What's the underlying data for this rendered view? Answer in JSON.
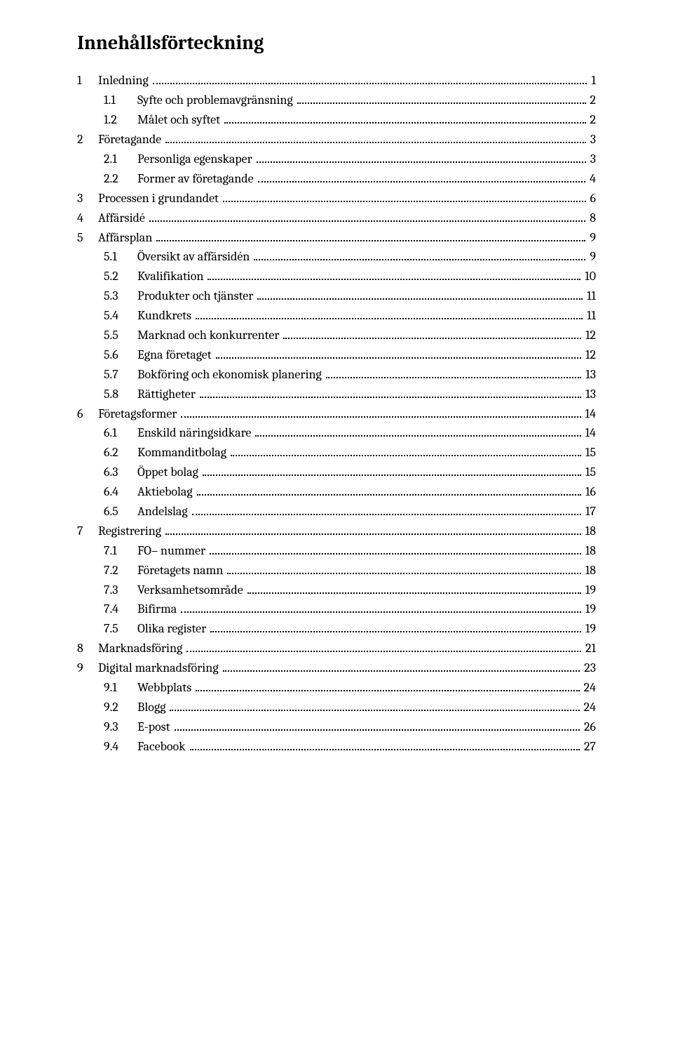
{
  "title": "Innehållsförteckning",
  "entries": [
    {
      "level": 1,
      "num": "1",
      "label": "Inledning",
      "page": "1"
    },
    {
      "level": 2,
      "num": "1.1",
      "label": "Syfte och problemavgränsning",
      "page": "2"
    },
    {
      "level": 2,
      "num": "1.2",
      "label": "Målet och syftet",
      "page": "2"
    },
    {
      "level": 1,
      "num": "2",
      "label": "Företagande",
      "page": "3"
    },
    {
      "level": 2,
      "num": "2.1",
      "label": "Personliga egenskaper",
      "page": "3"
    },
    {
      "level": 2,
      "num": "2.2",
      "label": "Former av företagande",
      "page": "4"
    },
    {
      "level": 1,
      "num": "3",
      "label": "Processen i grundandet",
      "page": "6"
    },
    {
      "level": 1,
      "num": "4",
      "label": "Affärsidé",
      "page": "8"
    },
    {
      "level": 1,
      "num": "5",
      "label": "Affärsplan",
      "page": "9"
    },
    {
      "level": 2,
      "num": "5.1",
      "label": "Översikt av affärsidén",
      "page": "9"
    },
    {
      "level": 2,
      "num": "5.2",
      "label": "Kvalifikation",
      "page": "10"
    },
    {
      "level": 2,
      "num": "5.3",
      "label": "Produkter och tjänster",
      "page": "11"
    },
    {
      "level": 2,
      "num": "5.4",
      "label": "Kundkrets",
      "page": "11"
    },
    {
      "level": 2,
      "num": "5.5",
      "label": "Marknad och konkurrenter",
      "page": "12"
    },
    {
      "level": 2,
      "num": "5.6",
      "label": "Egna företaget",
      "page": "12"
    },
    {
      "level": 2,
      "num": "5.7",
      "label": "Bokföring och ekonomisk planering",
      "page": "13"
    },
    {
      "level": 2,
      "num": "5.8",
      "label": "Rättigheter",
      "page": "13"
    },
    {
      "level": 1,
      "num": "6",
      "label": "Företagsformer",
      "page": "14"
    },
    {
      "level": 2,
      "num": "6.1",
      "label": "Enskild näringsidkare",
      "page": "14"
    },
    {
      "level": 2,
      "num": "6.2",
      "label": "Kommanditbolag",
      "page": "15"
    },
    {
      "level": 2,
      "num": "6.3",
      "label": "Öppet bolag",
      "page": "15"
    },
    {
      "level": 2,
      "num": "6.4",
      "label": "Aktiebolag",
      "page": "16"
    },
    {
      "level": 2,
      "num": "6.5",
      "label": "Andelslag",
      "page": "17"
    },
    {
      "level": 1,
      "num": "7",
      "label": "Registrering",
      "page": "18"
    },
    {
      "level": 2,
      "num": "7.1",
      "label": "FO– nummer",
      "page": "18"
    },
    {
      "level": 2,
      "num": "7.2",
      "label": "Företagets namn",
      "page": "18"
    },
    {
      "level": 2,
      "num": "7.3",
      "label": "Verksamhetsområde",
      "page": "19"
    },
    {
      "level": 2,
      "num": "7.4",
      "label": "Bifirma",
      "page": "19"
    },
    {
      "level": 2,
      "num": "7.5",
      "label": "Olika register",
      "page": "19"
    },
    {
      "level": 1,
      "num": "8",
      "label": "Marknadsföring",
      "page": "21"
    },
    {
      "level": 1,
      "num": "9",
      "label": "Digital marknadsföring",
      "page": "23"
    },
    {
      "level": 2,
      "num": "9.1",
      "label": "Webbplats",
      "page": "24"
    },
    {
      "level": 2,
      "num": "9.2",
      "label": "Blogg",
      "page": "24"
    },
    {
      "level": 2,
      "num": "9.3",
      "label": "E-post",
      "page": "26"
    },
    {
      "level": 2,
      "num": "9.4",
      "label": "Facebook",
      "page": "27"
    }
  ]
}
